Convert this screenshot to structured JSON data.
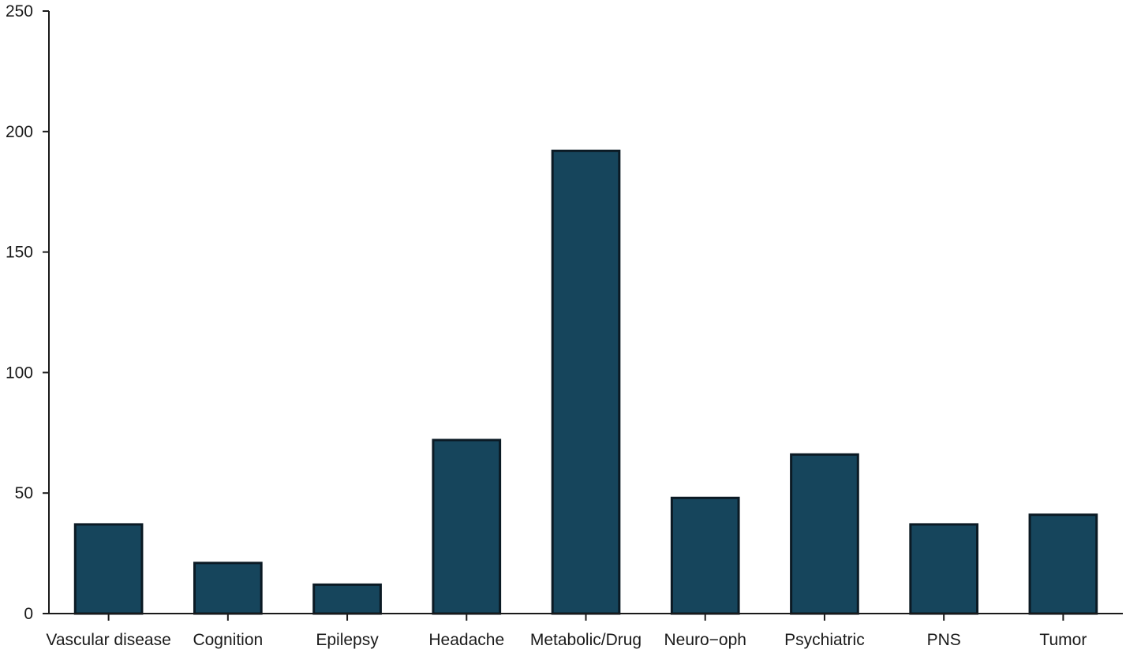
{
  "chart_data": {
    "type": "bar",
    "categories": [
      "Vascular disease",
      "Cognition",
      "Epilepsy",
      "Headache",
      "Metabolic/Drug",
      "Neuro−oph",
      "Psychiatric",
      "PNS",
      "Tumor"
    ],
    "values": [
      37,
      21,
      12,
      72,
      192,
      48,
      66,
      37,
      41
    ],
    "yticks": [
      0,
      50,
      100,
      150,
      200,
      250
    ],
    "ylim": [
      0,
      250
    ],
    "title": "",
    "xlabel": "",
    "ylabel": "",
    "grid": false,
    "bar_color": "#16455c"
  }
}
